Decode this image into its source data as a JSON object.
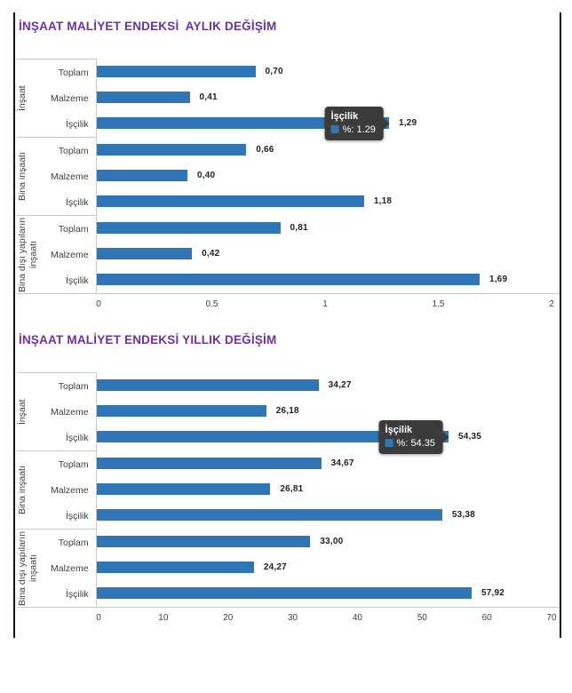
{
  "style": {
    "bar_color": "#2e76b6",
    "title_color": "#7030a0",
    "tooltip_bg": "#3b3b3b",
    "tooltip_text_color": "#ffffff",
    "axis_text_color": "#404040",
    "value_text_color": "#222222",
    "grid_line_color": "#c9c9c9",
    "page_border_color": "#141414"
  },
  "chart_data": [
    {
      "type": "bar",
      "orientation": "horizontal",
      "title": "İNŞAAT MALİYET ENDEKSİ  AYLIK DEĞİŞİM",
      "series_name": "%",
      "group_labels": [
        "İnşaat",
        "Bina inşaatı",
        "Bina dışı yapıların inşaatı"
      ],
      "categories": [
        "Toplam",
        "Malzeme",
        "İşçilik"
      ],
      "xlim": [
        0,
        2
      ],
      "xticks": [
        0,
        0.5,
        1,
        1.5,
        2
      ],
      "xtick_labels": [
        "0",
        "0.5",
        "1",
        "1.5",
        "2"
      ],
      "grid": false,
      "legend": false,
      "rows": [
        {
          "group": 0,
          "category": "Toplam",
          "value": 0.7,
          "label": "0,70"
        },
        {
          "group": 0,
          "category": "Malzeme",
          "value": 0.41,
          "label": "0,41"
        },
        {
          "group": 0,
          "category": "İşçilik",
          "value": 1.29,
          "label": "1,29",
          "tooltip": {
            "title": "İşçilik",
            "value_text": "%: 1.29"
          }
        },
        {
          "group": 1,
          "category": "Toplam",
          "value": 0.66,
          "label": "0,66"
        },
        {
          "group": 1,
          "category": "Malzeme",
          "value": 0.4,
          "label": "0,40"
        },
        {
          "group": 1,
          "category": "İşçilik",
          "value": 1.18,
          "label": "1,18"
        },
        {
          "group": 2,
          "category": "Toplam",
          "value": 0.81,
          "label": "0,81"
        },
        {
          "group": 2,
          "category": "Malzeme",
          "value": 0.42,
          "label": "0,42"
        },
        {
          "group": 2,
          "category": "İşçilik",
          "value": 1.69,
          "label": "1,69"
        }
      ]
    },
    {
      "type": "bar",
      "orientation": "horizontal",
      "title": "İNŞAAT MALİYET ENDEKSİ YILLIK DEĞİŞİM",
      "series_name": "%",
      "group_labels": [
        "İnşaat",
        "Bina inşaatı",
        "Bina dışı yapıların inşaatı"
      ],
      "categories": [
        "Toplam",
        "Malzeme",
        "İşçilik"
      ],
      "xlim": [
        0,
        70
      ],
      "xticks": [
        0,
        10,
        20,
        30,
        40,
        50,
        60,
        70
      ],
      "xtick_labels": [
        "0",
        "10",
        "20",
        "30",
        "40",
        "50",
        "60",
        "70"
      ],
      "grid": false,
      "legend": false,
      "rows": [
        {
          "group": 0,
          "category": "Toplam",
          "value": 34.27,
          "label": "34,27"
        },
        {
          "group": 0,
          "category": "Malzeme",
          "value": 26.18,
          "label": "26,18"
        },
        {
          "group": 0,
          "category": "İşçilik",
          "value": 54.35,
          "label": "54,35",
          "tooltip": {
            "title": "İşçilik",
            "value_text": "%: 54.35"
          }
        },
        {
          "group": 1,
          "category": "Toplam",
          "value": 34.67,
          "label": "34,67"
        },
        {
          "group": 1,
          "category": "Malzeme",
          "value": 26.81,
          "label": "26,81"
        },
        {
          "group": 1,
          "category": "İşçilik",
          "value": 53.38,
          "label": "53,38"
        },
        {
          "group": 2,
          "category": "Toplam",
          "value": 33.0,
          "label": "33,00"
        },
        {
          "group": 2,
          "category": "Malzeme",
          "value": 24.27,
          "label": "24,27"
        },
        {
          "group": 2,
          "category": "İşçilik",
          "value": 57.92,
          "label": "57,92"
        }
      ]
    }
  ]
}
